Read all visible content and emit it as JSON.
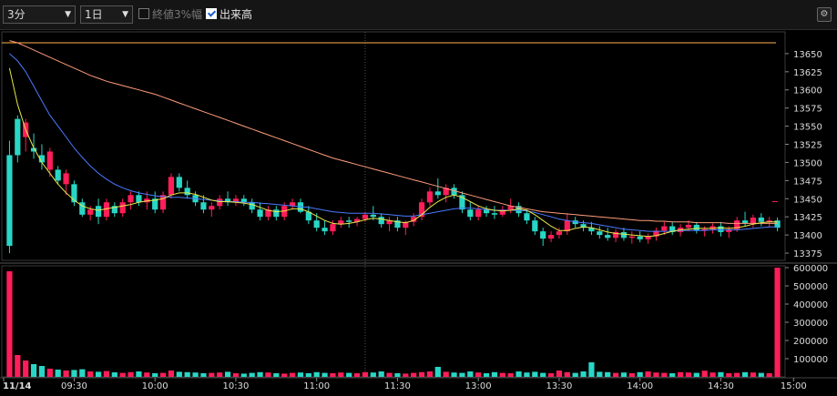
{
  "toolbar": {
    "interval": "3分",
    "period": "1日",
    "option_label": "終値3%幅",
    "option_checked": false,
    "volume_label": "出来高",
    "volume_checked": true,
    "settings_icon": "gear-icon"
  },
  "colors": {
    "up": "#ff1e5a",
    "down": "#29d6c6",
    "ma_short": "#e8e84b",
    "ma_mid": "#4a7bff",
    "ma_long": "#ff9c7a",
    "line": "#ffb24a"
  },
  "chart_data": [
    {
      "type": "candlestick",
      "title": "",
      "y_ticks": [
        13375,
        13400,
        13425,
        13450,
        13475,
        13500,
        13525,
        13550,
        13575,
        13600,
        13625,
        13650
      ],
      "ylim": [
        13365,
        13680
      ],
      "x_ticks": [
        "11/14",
        "09:30",
        "10:00",
        "10:30",
        "11:00",
        "11:30",
        "13:00",
        "13:30",
        "14:00",
        "14:30",
        "15:00"
      ],
      "reference_line": 13665,
      "last_close_marker": 13446,
      "candles": [
        [
          13510,
          13530,
          13375,
          13385
        ],
        [
          13560,
          13565,
          13500,
          13510
        ],
        [
          13535,
          13560,
          13515,
          13555
        ],
        [
          13520,
          13540,
          13505,
          13515
        ],
        [
          13510,
          13525,
          13490,
          13500
        ],
        [
          13490,
          13520,
          13480,
          13515
        ],
        [
          13490,
          13495,
          13470,
          13475
        ],
        [
          13470,
          13490,
          13455,
          13485
        ],
        [
          13470,
          13475,
          13440,
          13445
        ],
        [
          13445,
          13450,
          13425,
          13428
        ],
        [
          13428,
          13440,
          13420,
          13435
        ],
        [
          13440,
          13450,
          13415,
          13425
        ],
        [
          13425,
          13450,
          13420,
          13445
        ],
        [
          13440,
          13445,
          13425,
          13430
        ],
        [
          13430,
          13450,
          13425,
          13445
        ],
        [
          13445,
          13460,
          13435,
          13455
        ],
        [
          13455,
          13460,
          13440,
          13445
        ],
        [
          13445,
          13460,
          13435,
          13450
        ],
        [
          13450,
          13460,
          13430,
          13435
        ],
        [
          13435,
          13460,
          13430,
          13455
        ],
        [
          13455,
          13485,
          13450,
          13480
        ],
        [
          13480,
          13485,
          13460,
          13465
        ],
        [
          13465,
          13475,
          13450,
          13455
        ],
        [
          13455,
          13460,
          13440,
          13445
        ],
        [
          13445,
          13455,
          13430,
          13435
        ],
        [
          13435,
          13445,
          13425,
          13440
        ],
        [
          13440,
          13455,
          13435,
          13450
        ],
        [
          13450,
          13460,
          13440,
          13445
        ],
        [
          13445,
          13455,
          13440,
          13450
        ],
        [
          13450,
          13455,
          13440,
          13445
        ],
        [
          13445,
          13450,
          13430,
          13435
        ],
        [
          13435,
          13445,
          13420,
          13425
        ],
        [
          13425,
          13440,
          13420,
          13435
        ],
        [
          13435,
          13440,
          13420,
          13425
        ],
        [
          13425,
          13445,
          13420,
          13440
        ],
        [
          13440,
          13450,
          13435,
          13445
        ],
        [
          13445,
          13450,
          13430,
          13432
        ],
        [
          13432,
          13440,
          13415,
          13420
        ],
        [
          13420,
          13430,
          13405,
          13410
        ],
        [
          13410,
          13420,
          13400,
          13405
        ],
        [
          13405,
          13420,
          13400,
          13415
        ],
        [
          13415,
          13425,
          13410,
          13420
        ],
        [
          13420,
          13425,
          13410,
          13418
        ],
        [
          13418,
          13425,
          13412,
          13422
        ],
        [
          13422,
          13432,
          13418,
          13428
        ],
        [
          13428,
          13440,
          13420,
          13425
        ],
        [
          13425,
          13430,
          13410,
          13415
        ],
        [
          13415,
          13425,
          13405,
          13420
        ],
        [
          13420,
          13425,
          13405,
          13410
        ],
        [
          13410,
          13420,
          13400,
          13418
        ],
        [
          13418,
          13430,
          13412,
          13425
        ],
        [
          13425,
          13450,
          13420,
          13445
        ],
        [
          13445,
          13465,
          13440,
          13460
        ],
        [
          13460,
          13478,
          13450,
          13455
        ],
        [
          13455,
          13470,
          13445,
          13465
        ],
        [
          13465,
          13470,
          13450,
          13455
        ],
        [
          13455,
          13460,
          13430,
          13435
        ],
        [
          13435,
          13445,
          13420,
          13425
        ],
        [
          13425,
          13440,
          13420,
          13435
        ],
        [
          13435,
          13440,
          13425,
          13430
        ],
        [
          13430,
          13440,
          13422,
          13428
        ],
        [
          13428,
          13440,
          13425,
          13435
        ],
        [
          13435,
          13450,
          13430,
          13440
        ],
        [
          13440,
          13445,
          13425,
          13430
        ],
        [
          13430,
          13435,
          13415,
          13420
        ],
        [
          13420,
          13425,
          13400,
          13405
        ],
        [
          13405,
          13410,
          13385,
          13395
        ],
        [
          13395,
          13405,
          13390,
          13400
        ],
        [
          13400,
          13410,
          13395,
          13405
        ],
        [
          13405,
          13430,
          13400,
          13420
        ],
        [
          13420,
          13425,
          13410,
          13415
        ],
        [
          13415,
          13420,
          13405,
          13410
        ],
        [
          13410,
          13418,
          13400,
          13405
        ],
        [
          13405,
          13412,
          13395,
          13400
        ],
        [
          13400,
          13410,
          13392,
          13396
        ],
        [
          13396,
          13408,
          13390,
          13404
        ],
        [
          13404,
          13410,
          13392,
          13396
        ],
        [
          13396,
          13405,
          13388,
          13398
        ],
        [
          13398,
          13405,
          13390,
          13394
        ],
        [
          13394,
          13402,
          13388,
          13398
        ],
        [
          13398,
          13410,
          13392,
          13406
        ],
        [
          13406,
          13418,
          13400,
          13412
        ],
        [
          13412,
          13418,
          13400,
          13404
        ],
        [
          13404,
          13415,
          13398,
          13410
        ],
        [
          13410,
          13420,
          13405,
          13414
        ],
        [
          13414,
          13418,
          13402,
          13406
        ],
        [
          13406,
          13412,
          13398,
          13408
        ],
        [
          13408,
          13416,
          13402,
          13412
        ],
        [
          13412,
          13418,
          13398,
          13404
        ],
        [
          13404,
          13412,
          13396,
          13408
        ],
        [
          13408,
          13425,
          13404,
          13420
        ],
        [
          13420,
          13432,
          13412,
          13416
        ],
        [
          13416,
          13428,
          13410,
          13424
        ],
        [
          13424,
          13430,
          13412,
          13418
        ],
        [
          13418,
          13425,
          13410,
          13420
        ],
        [
          13420,
          13424,
          13405,
          13410
        ]
      ],
      "ma_short": [
        13630,
        13580,
        13545,
        13520,
        13500,
        13485,
        13470,
        13458,
        13448,
        13440,
        13436,
        13434,
        13436,
        13438,
        13440,
        13442,
        13445,
        13447,
        13448,
        13450,
        13455,
        13458,
        13458,
        13456,
        13452,
        13448,
        13446,
        13446,
        13445,
        13444,
        13442,
        13438,
        13434,
        13432,
        13433,
        13436,
        13436,
        13432,
        13426,
        13420,
        13416,
        13415,
        13416,
        13418,
        13421,
        13423,
        13422,
        13420,
        13418,
        13417,
        13420,
        13428,
        13438,
        13446,
        13452,
        13455,
        13452,
        13446,
        13440,
        13436,
        13434,
        13433,
        13434,
        13436,
        13434,
        13428,
        13420,
        13412,
        13406,
        13406,
        13409,
        13411,
        13410,
        13407,
        13404,
        13402,
        13401,
        13400,
        13399,
        13398,
        13399,
        13402,
        13405,
        13407,
        13408,
        13409,
        13409,
        13409,
        13410,
        13409,
        13410,
        13412,
        13415,
        13417,
        13418,
        13418
      ],
      "ma_mid": [
        13650,
        13640,
        13625,
        13605,
        13585,
        13565,
        13550,
        13535,
        13520,
        13507,
        13495,
        13485,
        13477,
        13470,
        13465,
        13461,
        13458,
        13456,
        13454,
        13453,
        13452,
        13452,
        13451,
        13450,
        13449,
        13448,
        13447,
        13446,
        13446,
        13445,
        13445,
        13444,
        13443,
        13442,
        13441,
        13440,
        13439,
        13438,
        13436,
        13434,
        13432,
        13431,
        13430,
        13430,
        13430,
        13430,
        13429,
        13428,
        13427,
        13426,
        13426,
        13428,
        13430,
        13432,
        13434,
        13436,
        13437,
        13437,
        13436,
        13435,
        13434,
        13434,
        13434,
        13434,
        13433,
        13431,
        13428,
        13425,
        13422,
        13420,
        13418,
        13417,
        13416,
        13414,
        13412,
        13410,
        13408,
        13407,
        13406,
        13405,
        13405,
        13405,
        13405,
        13406,
        13406,
        13406,
        13406,
        13407,
        13407,
        13407,
        13407,
        13408,
        13409,
        13410,
        13411,
        13411
      ],
      "ma_long": [
        13668,
        13665,
        13660,
        13655,
        13650,
        13645,
        13640,
        13635,
        13630,
        13625,
        13620,
        13616,
        13612,
        13609,
        13606,
        13603,
        13600,
        13597,
        13594,
        13590,
        13586,
        13582,
        13578,
        13574,
        13570,
        13566,
        13562,
        13558,
        13554,
        13550,
        13546,
        13542,
        13538,
        13534,
        13530,
        13526,
        13522,
        13518,
        13514,
        13510,
        13506,
        13503,
        13500,
        13497,
        13494,
        13491,
        13488,
        13485,
        13482,
        13479,
        13476,
        13473,
        13470,
        13467,
        13464,
        13461,
        13458,
        13455,
        13452,
        13449,
        13446,
        13443,
        13440,
        13438,
        13436,
        13434,
        13432,
        13431,
        13430,
        13429,
        13428,
        13427,
        13426,
        13425,
        13424,
        13423,
        13422,
        13421,
        13420,
        13420,
        13419,
        13419,
        13418,
        13418,
        13418,
        13417,
        13417,
        13417,
        13417,
        13416,
        13416,
        13416,
        13416,
        13416,
        13416,
        13416
      ]
    },
    {
      "type": "bar",
      "title": "",
      "y_ticks": [
        100000,
        200000,
        300000,
        400000,
        500000,
        600000
      ],
      "ylim": [
        0,
        610000
      ],
      "volume": [
        580000,
        120000,
        90000,
        70000,
        60000,
        45000,
        40000,
        35000,
        38000,
        42000,
        30000,
        28000,
        32000,
        25000,
        22000,
        26000,
        30000,
        24000,
        20000,
        22000,
        35000,
        28000,
        26000,
        24000,
        20000,
        22000,
        24000,
        28000,
        20000,
        18000,
        22000,
        26000,
        24000,
        20000,
        18000,
        22000,
        24000,
        20000,
        26000,
        22000,
        20000,
        24000,
        22000,
        20000,
        26000,
        24000,
        30000,
        22000,
        20000,
        18000,
        22000,
        26000,
        30000,
        55000,
        28000,
        24000,
        22000,
        30000,
        24000,
        20000,
        26000,
        22000,
        20000,
        30000,
        24000,
        28000,
        22000,
        20000,
        35000,
        26000,
        22000,
        30000,
        80000,
        28000,
        26000,
        22000,
        24000,
        20000,
        26000,
        30000,
        24000,
        22000,
        20000,
        26000,
        24000,
        22000,
        34000,
        24000,
        26000,
        20000,
        22000,
        26000,
        24000,
        22000,
        20000,
        600000
      ],
      "volume_up": [
        true,
        true,
        true,
        false,
        false,
        true,
        false,
        true,
        false,
        false,
        true,
        false,
        true,
        false,
        true,
        true,
        false,
        true,
        false,
        true,
        true,
        false,
        false,
        false,
        false,
        true,
        true,
        false,
        true,
        false,
        false,
        false,
        true,
        false,
        true,
        true,
        false,
        false,
        false,
        false,
        true,
        true,
        false,
        true,
        true,
        false,
        false,
        true,
        false,
        true,
        true,
        true,
        true,
        false,
        true,
        false,
        false,
        false,
        true,
        false,
        false,
        true,
        true,
        false,
        false,
        false,
        false,
        true,
        true,
        true,
        false,
        false,
        false,
        false,
        false,
        true,
        false,
        true,
        false,
        true,
        true,
        true,
        false,
        true,
        true,
        false,
        true,
        true,
        false,
        true,
        true,
        false,
        true,
        false,
        true,
        true
      ]
    }
  ]
}
